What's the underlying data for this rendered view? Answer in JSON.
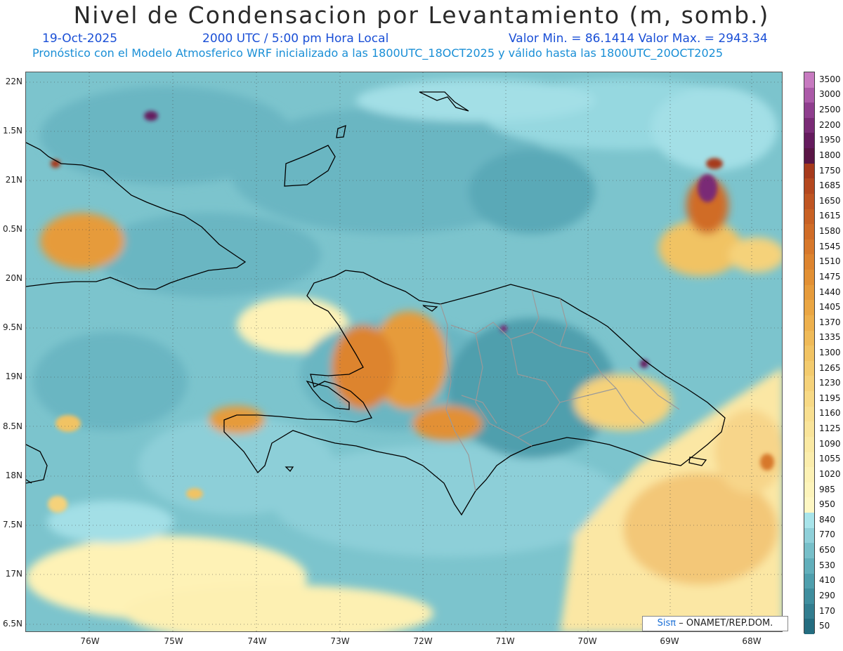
{
  "header": {
    "title": "Nivel de Condensacion por Levantamiento (m, somb.)",
    "date": "19-Oct-2025",
    "time": "2000 UTC / 5:00 pm Hora Local",
    "min_max": "Valor Min. = 86.1414  Valor Max. = 2943.34",
    "description": "Pronóstico con el Modelo Atmosferico WRF inicializado a las 1800UTC_18OCT2025 y válido hasta las  1800UTC_20OCT2025"
  },
  "axes": {
    "lat_labels": [
      "22N",
      "1.5N",
      "21N",
      "0.5N",
      "20N",
      "9.5N",
      "19N",
      "8.5N",
      "18N",
      "7.5N",
      "17N",
      "6.5N"
    ],
    "lon_labels": [
      "76W",
      "75W",
      "74W",
      "73W",
      "72W",
      "71W",
      "70W",
      "69W",
      "68W"
    ]
  },
  "colorbar": {
    "labels": [
      "3500",
      "3000",
      "2500",
      "2200",
      "1950",
      "1800",
      "1750",
      "1685",
      "1650",
      "1615",
      "1580",
      "1545",
      "1510",
      "1475",
      "1440",
      "1405",
      "1370",
      "1335",
      "1300",
      "1265",
      "1230",
      "1195",
      "1160",
      "1125",
      "1090",
      "1055",
      "1020",
      "985",
      "950",
      "840",
      "770",
      "650",
      "530",
      "410",
      "290",
      "170",
      "50"
    ],
    "colors": [
      "#c77ac0",
      "#ab5aa8",
      "#8f3e8e",
      "#7a2b76",
      "#651b5e",
      "#5a1646",
      "#a63a1c",
      "#b4481f",
      "#bf5522",
      "#c86124",
      "#d06c27",
      "#d7782b",
      "#dd842f",
      "#e29034",
      "#e69b3b",
      "#eaa643",
      "#edb04d",
      "#efba58",
      "#f1c363",
      "#f3cb6e",
      "#f5d27a",
      "#f7d985",
      "#f8df90",
      "#f9e49a",
      "#fae9a3",
      "#fbedac",
      "#fcf1b4",
      "#fdf4bb",
      "#fef7c3",
      "#a8e4ea",
      "#8fd0d9",
      "#77bfc9",
      "#62afbb",
      "#4f9fad",
      "#3f8e9e",
      "#327d8f",
      "#246d80"
    ]
  },
  "credit": {
    "brand": "Sisπ",
    "text": "– ONAMET/REP.DOM."
  }
}
